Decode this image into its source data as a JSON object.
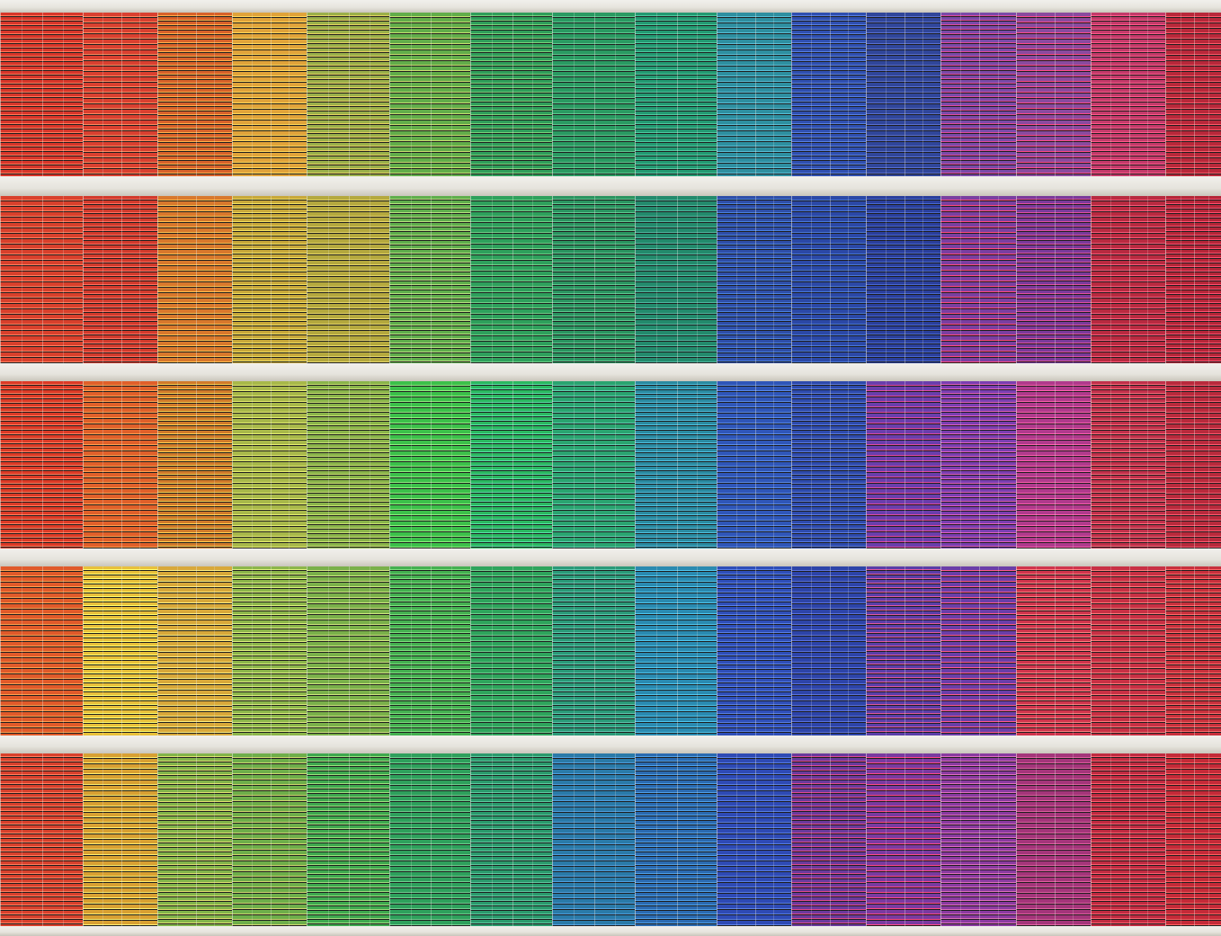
{
  "scene": {
    "subject": "building-facade-with-colored-blinds",
    "slab_color": "#e6e4dd",
    "frame_color": "#efefea"
  },
  "floors": [
    {
      "colors": [
        "#d8362a",
        "#d94030",
        "#d8622a",
        "#e0a33a",
        "#9bb04a",
        "#62ad4a",
        "#2f9e5a",
        "#2a9a62",
        "#239a72",
        "#2e8fa0",
        "#2f4fb0",
        "#30469a",
        "#7a4aa8",
        "#8a4a9e",
        "#c43a6a",
        "#b8283a"
      ],
      "accents": [
        "#ff7a5a",
        "#ff8a60",
        "#ffb04a",
        "#ffd85a",
        "#e4d060",
        "#c8e070",
        "#7ad07a",
        "#60c890",
        "#50c8a0",
        "#5ac0d8",
        "#5a80e0",
        "#5a70d0",
        "#e04a9a",
        "#ff4a8a",
        "#ff5a8a",
        "#ff5a6a"
      ]
    },
    {
      "colors": [
        "#d8402c",
        "#d23a2c",
        "#d8782c",
        "#c8a83a",
        "#b4a83e",
        "#5fae4c",
        "#2ea05c",
        "#2a9460",
        "#238a6c",
        "#2e4ea8",
        "#2b48a6",
        "#2a3f9c",
        "#7a3fa0",
        "#7a3a9a",
        "#b82a40",
        "#b52638"
      ],
      "accents": [
        "#ff8060",
        "#ff7060",
        "#ffc050",
        "#f0e060",
        "#e8d868",
        "#b8e080",
        "#70d088",
        "#60c890",
        "#50b8a0",
        "#4a80e0",
        "#4a78d8",
        "#4a68d0",
        "#ff4a80",
        "#e050a0",
        "#ff5a7a",
        "#ff5070"
      ]
    },
    {
      "colors": [
        "#dc3a26",
        "#e0602a",
        "#d07a2a",
        "#a8b84a",
        "#8ab44a",
        "#3cc04a",
        "#2ab860",
        "#2aa470",
        "#2a8aa0",
        "#2f56b8",
        "#2d4aac",
        "#6a3eac",
        "#7a3eb0",
        "#b03a8c",
        "#c0304a",
        "#b82a3c"
      ],
      "accents": [
        "#ff8060",
        "#ffa050",
        "#ffd050",
        "#e8f070",
        "#c8e070",
        "#90f080",
        "#5ae0a8",
        "#60d0b0",
        "#50c0e0",
        "#5a8ae8",
        "#5a7ae0",
        "#e04aa0",
        "#e060c0",
        "#ff60b0",
        "#ff6a7a",
        "#ff5a70"
      ]
    },
    {
      "colors": [
        "#e05a2a",
        "#e8c03a",
        "#d8a83a",
        "#8cb64a",
        "#7ab04a",
        "#44b050",
        "#2ea45c",
        "#2a9a78",
        "#2a8ab0",
        "#2e4eb8",
        "#2d44a8",
        "#5a3ea8",
        "#6a3ea8",
        "#d0344c",
        "#c83044",
        "#c8303c"
      ],
      "accents": [
        "#ffa050",
        "#ffff70",
        "#fff080",
        "#e0f080",
        "#d0e880",
        "#80e080",
        "#70d090",
        "#60c8b0",
        "#50c8f0",
        "#5a80e8",
        "#5a72e0",
        "#e05aa0",
        "#ff5a90",
        "#ff8080",
        "#ff7a7a",
        "#ff6a6a"
      ]
    },
    {
      "colors": [
        "#d8402c",
        "#d8a032",
        "#82b44a",
        "#6eae4a",
        "#3ea84e",
        "#2ea05c",
        "#2a9a6c",
        "#2a7aa8",
        "#2a6ab0",
        "#2e4ab4",
        "#6a3a9c",
        "#7a3aa0",
        "#8a3aa0",
        "#a4357a",
        "#c02a40",
        "#c42a38"
      ],
      "accents": [
        "#ff8060",
        "#fff070",
        "#e0e070",
        "#d0d870",
        "#a0e080",
        "#70d090",
        "#60c8a0",
        "#50a0e0",
        "#50a0e8",
        "#5a80e8",
        "#e04a90",
        "#ff4a8a",
        "#e070c0",
        "#e060a0",
        "#ff6070",
        "#ff6060"
      ]
    }
  ]
}
